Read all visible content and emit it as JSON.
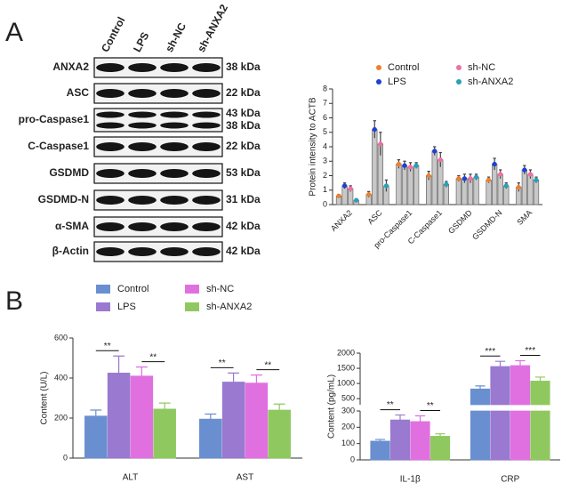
{
  "panels": [
    "A",
    "B"
  ],
  "blot": {
    "lanes": [
      "Control",
      "LPS",
      "sh-NC",
      "sh-ANXA2"
    ],
    "rows": [
      {
        "label": "ANXA2",
        "kda": [
          "38 kDa"
        ]
      },
      {
        "label": "ASC",
        "kda": [
          "22 kDa"
        ]
      },
      {
        "label": "pro-Caspase1",
        "kda": [
          "43 kDa",
          "38 kDa"
        ]
      },
      {
        "label": "C-Caspase1",
        "kda": [
          "22 kDa"
        ]
      },
      {
        "label": "GSDMD",
        "kda": [
          "53 kDa"
        ]
      },
      {
        "label": "GSDMD-N",
        "kda": [
          "31 kDa"
        ]
      },
      {
        "label": "α-SMA",
        "kda": [
          "42 kDa"
        ]
      },
      {
        "label": "β-Actin",
        "kda": [
          "42 kDa"
        ]
      }
    ]
  },
  "chart_data": [
    {
      "type": "bar",
      "ylabel": "Protein intensity to ACTB",
      "bar_color": "#c8c8c8",
      "legend_style": "dot",
      "categories": [
        "ANXA2",
        "ASC",
        "pro-Caspase1",
        "C-Caspase1",
        "GSDMD",
        "GSDMD-N",
        "SMA"
      ],
      "series": [
        {
          "name": "Control",
          "color": "#f07f2a",
          "values": [
            0.6,
            0.7,
            2.8,
            2.0,
            1.8,
            1.7,
            1.2
          ],
          "errors": [
            0.1,
            0.2,
            0.3,
            0.3,
            0.2,
            0.2,
            0.3
          ]
        },
        {
          "name": "LPS",
          "color": "#1f3fd6",
          "values": [
            1.3,
            5.2,
            2.7,
            3.7,
            1.8,
            2.8,
            2.4
          ],
          "errors": [
            0.2,
            0.6,
            0.3,
            0.3,
            0.3,
            0.4,
            0.3
          ]
        },
        {
          "name": "sh-NC",
          "color": "#f06fa5",
          "values": [
            1.1,
            4.2,
            2.6,
            3.1,
            1.8,
            2.1,
            2.1
          ],
          "errors": [
            0.2,
            0.8,
            0.3,
            0.5,
            0.3,
            0.3,
            0.3
          ]
        },
        {
          "name": "sh-ANXA2",
          "color": "#2aa0b8",
          "values": [
            0.3,
            1.3,
            2.7,
            1.4,
            1.9,
            1.3,
            1.7
          ],
          "errors": [
            0.1,
            0.4,
            0.2,
            0.2,
            0.2,
            0.2,
            0.2
          ]
        }
      ],
      "ylim": [
        0,
        8
      ],
      "yticks": [
        0,
        1,
        2,
        3,
        4,
        5,
        6,
        7,
        8
      ]
    },
    {
      "type": "bar",
      "ylabel": "Content (U/L)",
      "legend_style": "box",
      "categories": [
        "ALT",
        "AST"
      ],
      "series": [
        {
          "name": "Control",
          "color": "#6a8fd0",
          "values": [
            210,
            195
          ],
          "errors": [
            30,
            25
          ]
        },
        {
          "name": "LPS",
          "color": "#9a79d0",
          "values": [
            425,
            380
          ],
          "errors": [
            85,
            45
          ]
        },
        {
          "name": "sh-NC",
          "color": "#e070e0",
          "values": [
            410,
            375
          ],
          "errors": [
            45,
            40
          ]
        },
        {
          "name": "sh-ANXA2",
          "color": "#90c860",
          "values": [
            245,
            240
          ],
          "errors": [
            30,
            30
          ]
        }
      ],
      "ylim": [
        0,
        600
      ],
      "yticks": [
        0,
        200,
        400,
        600
      ],
      "significance": [
        {
          "text": "**",
          "category": 0,
          "from": 0,
          "to": 1
        },
        {
          "text": "**",
          "category": 0,
          "from": 2,
          "to": 3
        },
        {
          "text": "**",
          "category": 1,
          "from": 0,
          "to": 1
        },
        {
          "text": "**",
          "category": 1,
          "from": 2,
          "to": 3
        }
      ]
    },
    {
      "type": "bar",
      "ylabel": "Content (pg/mL)",
      "categories": [
        "IL-1β",
        "CRP"
      ],
      "series": [
        {
          "color": "#6a8fd0",
          "values": [
            115,
            820
          ],
          "errors": [
            10,
            100
          ]
        },
        {
          "color": "#9a79d0",
          "values": [
            245,
            1560
          ],
          "errors": [
            30,
            170
          ]
        },
        {
          "color": "#e070e0",
          "values": [
            235,
            1590
          ],
          "errors": [
            35,
            160
          ]
        },
        {
          "color": "#90c860",
          "values": [
            145,
            1080
          ],
          "errors": [
            15,
            130
          ]
        }
      ],
      "ylim": [
        0,
        2000
      ],
      "ysegments": [
        [
          0,
          300
        ],
        [
          300,
          2000
        ]
      ],
      "yticks": [
        0,
        100,
        200,
        300,
        500,
        1000,
        1500,
        2000
      ],
      "significance": [
        {
          "text": "**",
          "category": 0,
          "from": 0,
          "to": 1
        },
        {
          "text": "**",
          "category": 0,
          "from": 2,
          "to": 3
        },
        {
          "text": "***",
          "category": 1,
          "from": 0,
          "to": 1
        },
        {
          "text": "***",
          "category": 1,
          "from": 2,
          "to": 3
        }
      ]
    }
  ]
}
